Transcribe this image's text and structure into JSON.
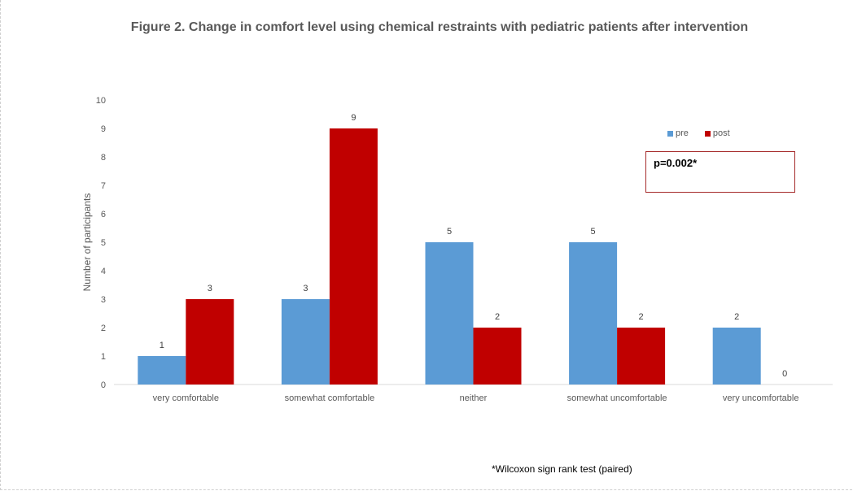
{
  "title": "Figure 2. Change in comfort level using chemical restraints with pediatric patients after intervention",
  "annotation": "p=0.002*",
  "footnote": "*Wilcoxon sign rank test (paired)",
  "legend": {
    "pre": "pre",
    "post": "post"
  },
  "colors": {
    "pre": "#5b9bd5",
    "post": "#c00000"
  },
  "chart_data": {
    "type": "bar",
    "title": "Figure 2. Change in comfort level using chemical restraints with pediatric patients after intervention",
    "xlabel": "",
    "ylabel": "Number of participants",
    "ylim": [
      0,
      10
    ],
    "yticks": [
      0,
      1,
      2,
      3,
      4,
      5,
      6,
      7,
      8,
      9,
      10
    ],
    "categories": [
      "very comfortable",
      "somewhat comfortable",
      "neither",
      "somewhat uncomfortable",
      "very uncomfortable"
    ],
    "series": [
      {
        "name": "pre",
        "values": [
          1,
          3,
          5,
          5,
          2
        ]
      },
      {
        "name": "post",
        "values": [
          3,
          9,
          2,
          2,
          0
        ]
      }
    ],
    "data_labels": true,
    "grid": false,
    "legend_position": "top-right"
  }
}
